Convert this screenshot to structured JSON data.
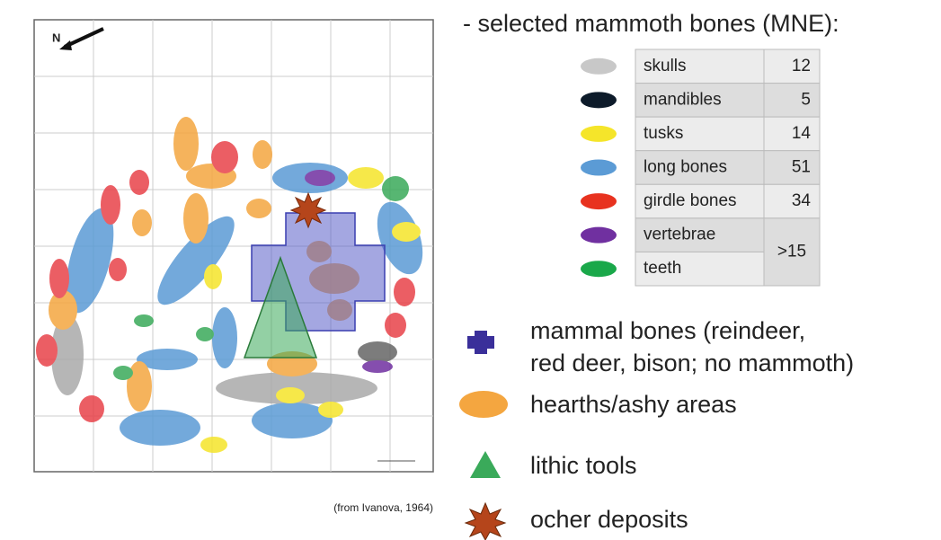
{
  "map": {
    "north_label": "N",
    "source": "(from Ivanova, 1964)"
  },
  "legend": {
    "title": "- selected mammoth bones (MNE):",
    "table": {
      "rows": [
        {
          "label": "skulls",
          "value": 12
        },
        {
          "label": "mandibles",
          "value": 5
        },
        {
          "label": "tusks",
          "value": 14
        },
        {
          "label": "long bones",
          "value": 51
        },
        {
          "label": "girdle bones",
          "value": 34
        },
        {
          "label": "vertebrae"
        },
        {
          "label": "teeth"
        }
      ],
      "merged_value": ">15"
    },
    "items": [
      {
        "lines": [
          "mammal bones (reindeer,",
          "red deer, bison; no mammoth)"
        ]
      },
      {
        "lines": [
          "hearths/ashy areas"
        ]
      },
      {
        "lines": [
          "lithic tools"
        ]
      },
      {
        "lines": [
          "ocher deposits"
        ]
      }
    ]
  }
}
